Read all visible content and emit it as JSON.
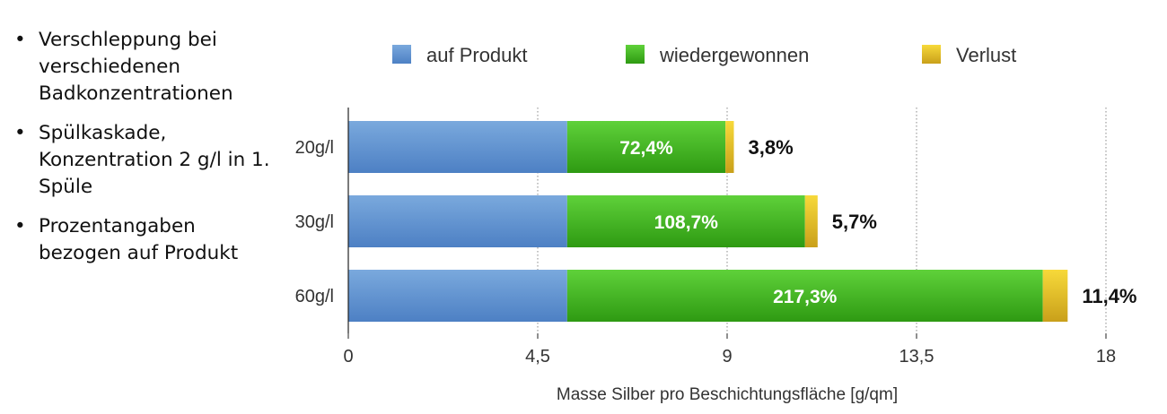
{
  "bullets": [
    "Verschleppung bei verschiedenen Badkonzentrationen",
    "Spülkaskade, Konzentration 2 g/l in 1. Spüle",
    "Prozentangaben bezogen auf Produkt"
  ],
  "chart_data": {
    "type": "bar",
    "orientation": "horizontal",
    "stacked": true,
    "categories": [
      "20g/l",
      "30g/l",
      "60g/l"
    ],
    "series": [
      {
        "name": "auf Produkt",
        "values": [
          5.2,
          5.2,
          5.2
        ],
        "color": "#5b8fcf"
      },
      {
        "name": "wiedergewonnen",
        "values": [
          3.76,
          5.65,
          11.3
        ],
        "color": "#3fb11e"
      },
      {
        "name": "Verlust",
        "values": [
          0.2,
          0.3,
          0.59
        ],
        "color": "#e6bd1f"
      }
    ],
    "inbar_labels": [
      "72,4%",
      "108,7%",
      "217,3%"
    ],
    "loss_labels": [
      "3,8%",
      "5,7%",
      "11,4%"
    ],
    "xlabel": "Masse Silber pro Beschichtungsfläche [g/qm]",
    "xlim": [
      0,
      18
    ],
    "xticks": [
      0,
      4.5,
      9,
      13.5,
      18
    ],
    "xtick_labels": [
      "0",
      "4,5",
      "9",
      "13,5",
      "18"
    ],
    "grid": "vertical dotted",
    "legend_position": "top"
  }
}
